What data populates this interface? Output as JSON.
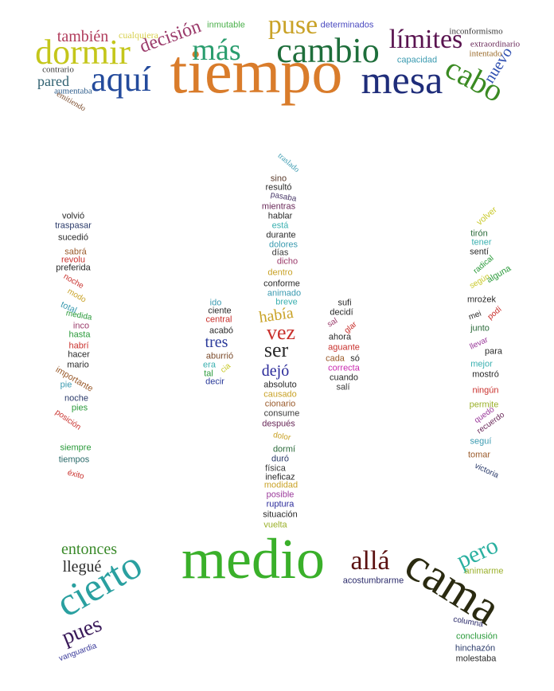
{
  "words": [
    {
      "text": "tiempo",
      "color": "#d97c2b"
    },
    {
      "text": "mesa",
      "color": "#1f2d7a"
    },
    {
      "text": "aquí",
      "color": "#244b9c"
    },
    {
      "text": "dormir",
      "color": "#c4c61a"
    },
    {
      "text": "más",
      "color": "#2a9d6e"
    },
    {
      "text": "cambio",
      "color": "#1e6e3b"
    },
    {
      "text": "puse",
      "color": "#c9a227"
    },
    {
      "text": "límites",
      "color": "#5a1450"
    },
    {
      "text": "cabo",
      "color": "#3a8a22"
    },
    {
      "text": "nuevo",
      "color": "#2f4fb0"
    },
    {
      "text": "decisión",
      "color": "#9b3b6b"
    },
    {
      "text": "también",
      "color": "#b03a5a"
    },
    {
      "text": "pared",
      "color": "#2f6070"
    },
    {
      "text": "cualquiera",
      "color": "#d8d050"
    },
    {
      "text": "inmutable",
      "color": "#4ab04a"
    },
    {
      "text": "determinados",
      "color": "#4a4ac0"
    },
    {
      "text": "inconformismo",
      "color": "#3a3a3a"
    },
    {
      "text": "extraordinario",
      "color": "#6a2a5a"
    },
    {
      "text": "intentado",
      "color": "#9a6a2a"
    },
    {
      "text": "capacidad",
      "color": "#3a9ab0"
    },
    {
      "text": "contrario",
      "color": "#3a3a3a"
    },
    {
      "text": "aumentaba",
      "color": "#2a5a8a"
    },
    {
      "text": "emitiendo",
      "color": "#7a4a2a"
    },
    {
      "text": "traslado",
      "color": "#3a9ab0"
    },
    {
      "text": "sino",
      "color": "#5a3a2a"
    },
    {
      "text": "resultó",
      "color": "#2a2a2a"
    },
    {
      "text": "pasaba",
      "color": "#4a3a6a"
    },
    {
      "text": "mientras",
      "color": "#6a2a5a"
    },
    {
      "text": "hablar",
      "color": "#2a2a2a"
    },
    {
      "text": "está",
      "color": "#3ab0b0"
    },
    {
      "text": "durante",
      "color": "#2a2a2a"
    },
    {
      "text": "dolores",
      "color": "#3a9ab0"
    },
    {
      "text": "días",
      "color": "#3a3a3a"
    },
    {
      "text": "dicho",
      "color": "#9b3b6b"
    },
    {
      "text": "dentro",
      "color": "#c9a227"
    },
    {
      "text": "conforme",
      "color": "#2a2a2a"
    },
    {
      "text": "animado",
      "color": "#3a9ab0"
    },
    {
      "text": "breve",
      "color": "#3ab0b0"
    },
    {
      "text": "había",
      "color": "#c9a227"
    },
    {
      "text": "vez",
      "color": "#c9302c"
    },
    {
      "text": "ser",
      "color": "#2a2a2a"
    },
    {
      "text": "dejó",
      "color": "#2a2a9a"
    },
    {
      "text": "absoluto",
      "color": "#2a2a2a"
    },
    {
      "text": "causado",
      "color": "#c9a227"
    },
    {
      "text": "cionario",
      "color": "#9a5a2a"
    },
    {
      "text": "consume",
      "color": "#3a3a3a"
    },
    {
      "text": "después",
      "color": "#6a2a5a"
    },
    {
      "text": "dolor",
      "color": "#c9a227"
    },
    {
      "text": "dormí",
      "color": "#2a6a3a"
    },
    {
      "text": "duró",
      "color": "#2a3a6a"
    },
    {
      "text": "física",
      "color": "#3a3a3a"
    },
    {
      "text": "ineficaz",
      "color": "#2a2a2a"
    },
    {
      "text": "modidad",
      "color": "#c9a227"
    },
    {
      "text": "posible",
      "color": "#9b3b9b"
    },
    {
      "text": "ruptura",
      "color": "#2a2a9a"
    },
    {
      "text": "situación",
      "color": "#2a2a2a"
    },
    {
      "text": "vuelta",
      "color": "#9ab02a"
    },
    {
      "text": "ido",
      "color": "#3a9ab0"
    },
    {
      "text": "ciente",
      "color": "#2a2a2a"
    },
    {
      "text": "central",
      "color": "#c9302c"
    },
    {
      "text": "acabó",
      "color": "#2a2a2a"
    },
    {
      "text": "tres",
      "color": "#2a3a9a"
    },
    {
      "text": "aburrió",
      "color": "#7a4a2a"
    },
    {
      "text": "era",
      "color": "#3ab0b0"
    },
    {
      "text": "cia",
      "color": "#c9c92a"
    },
    {
      "text": "tal",
      "color": "#2a9a3a"
    },
    {
      "text": "decir",
      "color": "#2a3a9a"
    },
    {
      "text": "sufi",
      "color": "#2a2a2a"
    },
    {
      "text": "decidí",
      "color": "#2a2a2a"
    },
    {
      "text": "sal",
      "color": "#9a3a6a"
    },
    {
      "text": "glar",
      "color": "#c9302c"
    },
    {
      "text": "ahora",
      "color": "#2a2a2a"
    },
    {
      "text": "aguante",
      "color": "#c9302c"
    },
    {
      "text": "cada",
      "color": "#9a5a2a"
    },
    {
      "text": "só",
      "color": "#2a2a2a"
    },
    {
      "text": "correcta",
      "color": "#c92ab0"
    },
    {
      "text": "cuando",
      "color": "#2a2a2a"
    },
    {
      "text": "salí",
      "color": "#3a3a3a"
    },
    {
      "text": "volvió",
      "color": "#2a2a2a"
    },
    {
      "text": "traspasar",
      "color": "#2a3a6a"
    },
    {
      "text": "sucedió",
      "color": "#2a2a2a"
    },
    {
      "text": "sabrá",
      "color": "#9a5a2a"
    },
    {
      "text": "revolu",
      "color": "#c9302c"
    },
    {
      "text": "preferida",
      "color": "#2a2a2a"
    },
    {
      "text": "noche",
      "color": "#c9302c"
    },
    {
      "text": "modo",
      "color": "#c9a227"
    },
    {
      "text": "total",
      "color": "#3a9ab0"
    },
    {
      "text": "medida",
      "color": "#2a9a3a"
    },
    {
      "text": "inco",
      "color": "#9a3a6a"
    },
    {
      "text": "hasta",
      "color": "#2a9a3a"
    },
    {
      "text": "habrí",
      "color": "#c9302c"
    },
    {
      "text": "hacer",
      "color": "#2a2a2a"
    },
    {
      "text": "mario",
      "color": "#2a2a2a"
    },
    {
      "text": "importante",
      "color": "#9a5a2a"
    },
    {
      "text": "pie",
      "color": "#3a9ab0"
    },
    {
      "text": "noche",
      "color": "#2a3a6a"
    },
    {
      "text": "pies",
      "color": "#2a9a3a"
    },
    {
      "text": "posición",
      "color": "#c9302c"
    },
    {
      "text": "siempre",
      "color": "#2a9a3a"
    },
    {
      "text": "tiempos",
      "color": "#2a6a6a"
    },
    {
      "text": "éxito",
      "color": "#c9302c"
    },
    {
      "text": "volver",
      "color": "#c9c92a"
    },
    {
      "text": "tirón",
      "color": "#2a6a3a"
    },
    {
      "text": "tener",
      "color": "#3ab0b0"
    },
    {
      "text": "sentí",
      "color": "#2a2a2a"
    },
    {
      "text": "radical",
      "color": "#2a9a3a"
    },
    {
      "text": "alguna",
      "color": "#2a9a3a"
    },
    {
      "text": "según",
      "color": "#c9c92a"
    },
    {
      "text": "mrożek",
      "color": "#2a2a2a"
    },
    {
      "text": "mei",
      "color": "#2a2a2a"
    },
    {
      "text": "podí",
      "color": "#c9302c"
    },
    {
      "text": "junto",
      "color": "#2a6a3a"
    },
    {
      "text": "llevar",
      "color": "#9a3a9a"
    },
    {
      "text": "para",
      "color": "#2a2a2a"
    },
    {
      "text": "mejor",
      "color": "#3ab0b0"
    },
    {
      "text": "mostró",
      "color": "#2a2a2a"
    },
    {
      "text": "ningún",
      "color": "#c9302c"
    },
    {
      "text": "permite",
      "color": "#9ab02a"
    },
    {
      "text": "quedó",
      "color": "#9a3a9a"
    },
    {
      "text": "recuerdo",
      "color": "#6a2a5a"
    },
    {
      "text": "seguí",
      "color": "#3a9ab0"
    },
    {
      "text": "tomar",
      "color": "#9a5a2a"
    },
    {
      "text": "victoria",
      "color": "#2a3a6a"
    },
    {
      "text": "medio",
      "color": "#3ab02a"
    },
    {
      "text": "cierto",
      "color": "#2aa0a0"
    },
    {
      "text": "cama",
      "color": "#2a2a10"
    },
    {
      "text": "allá",
      "color": "#5a1010"
    },
    {
      "text": "pero",
      "color": "#2ab0a0"
    },
    {
      "text": "entonces",
      "color": "#3a8a2a"
    },
    {
      "text": "llegué",
      "color": "#2a2a2a"
    },
    {
      "text": "pues",
      "color": "#3a1a5a"
    },
    {
      "text": "acostumbrarme",
      "color": "#2a2a6a"
    },
    {
      "text": "animarme",
      "color": "#9ab02a"
    },
    {
      "text": "vanguardia",
      "color": "#3a3a9a"
    },
    {
      "text": "columna",
      "color": "#2a2a6a"
    },
    {
      "text": "conclusión",
      "color": "#2a9a3a"
    },
    {
      "text": "hinchazón",
      "color": "#2a3a6a"
    },
    {
      "text": "molestaba",
      "color": "#2a2a2a"
    }
  ]
}
